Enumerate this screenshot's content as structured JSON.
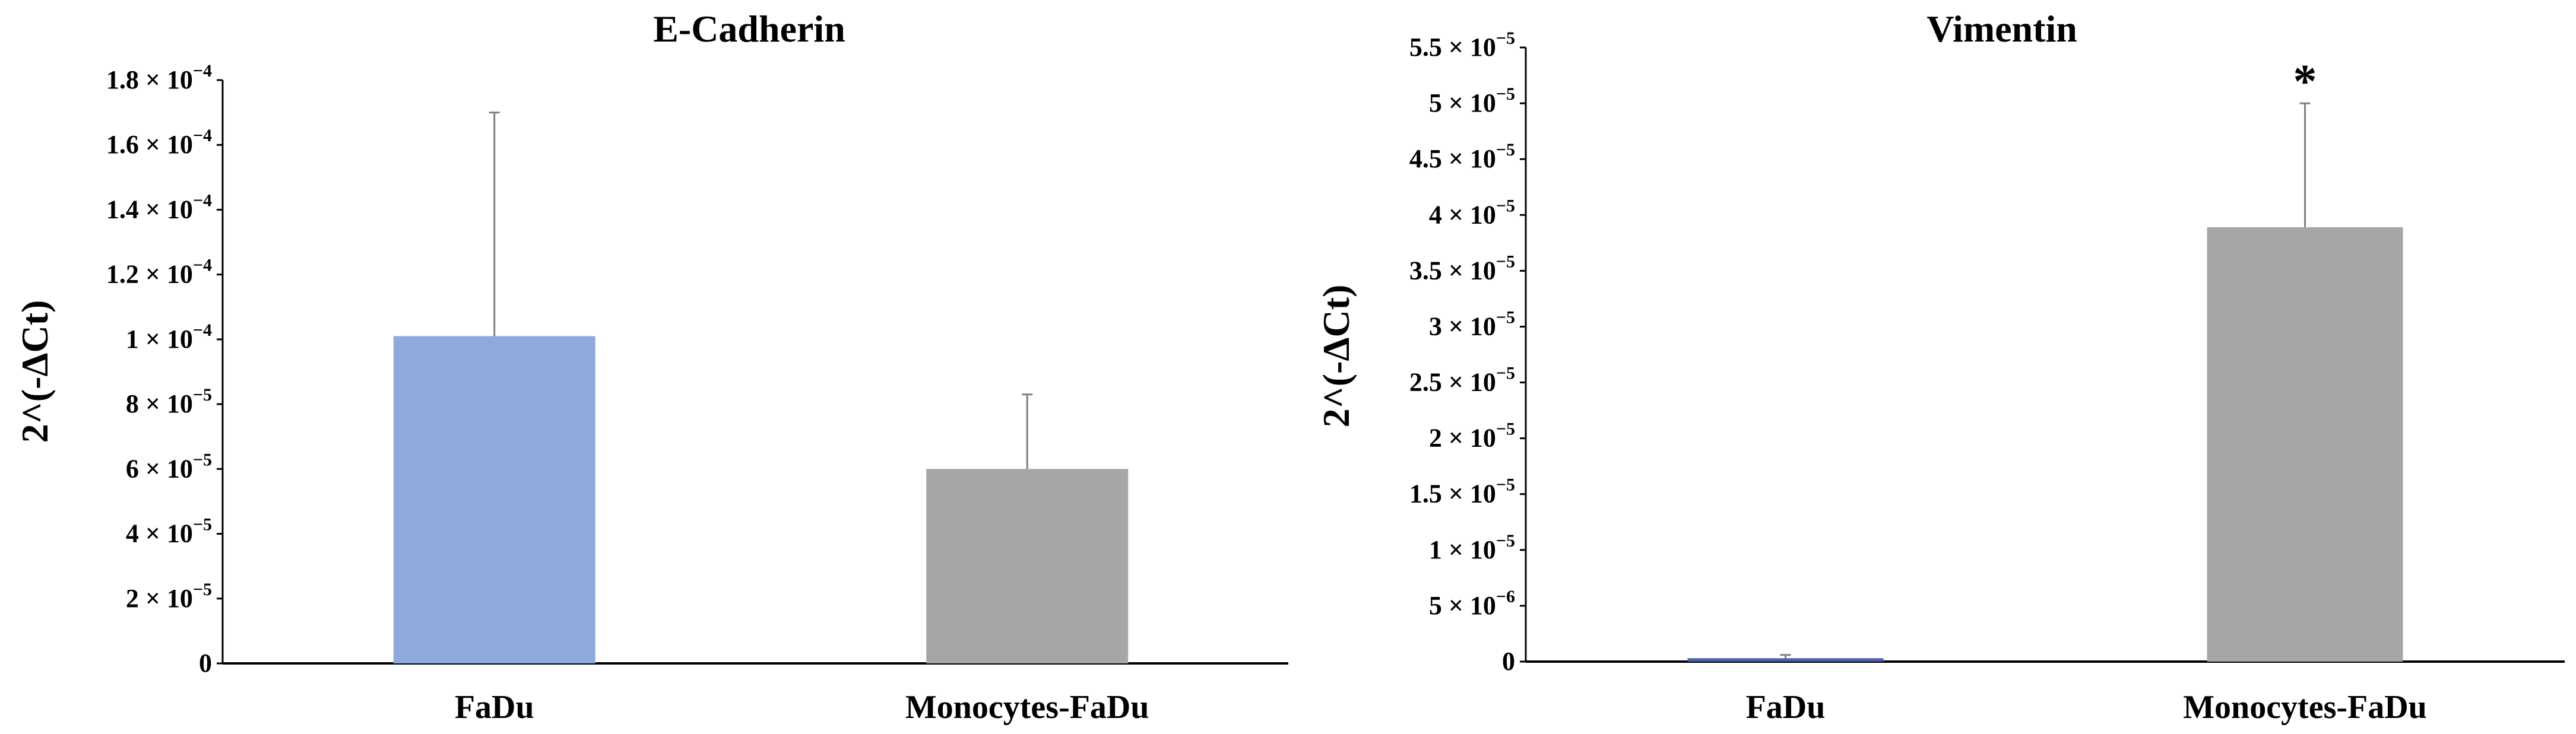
{
  "chart_data": [
    {
      "type": "bar",
      "title": "E-Cadherin",
      "ylabel": "2^(-ΔCt)",
      "xlabel": "",
      "categories": [
        "FaDu",
        "Monocytes-FaDu"
      ],
      "values": [
        0.000101,
        6e-05
      ],
      "errors": [
        6.9e-05,
        2.3e-05
      ],
      "colors": [
        "#8eaadc",
        "#a6a6a6"
      ],
      "ylim": [
        0,
        0.00018
      ],
      "annotations": [
        "",
        ""
      ],
      "yticks": [
        {
          "value": 0,
          "mantissa": "0",
          "exp": ""
        },
        {
          "value": 2e-05,
          "mantissa": "2 × 10",
          "exp": "−5"
        },
        {
          "value": 4e-05,
          "mantissa": "4 × 10",
          "exp": "−5"
        },
        {
          "value": 6e-05,
          "mantissa": "6 × 10",
          "exp": "−5"
        },
        {
          "value": 8e-05,
          "mantissa": "8 × 10",
          "exp": "−5"
        },
        {
          "value": 0.0001,
          "mantissa": "1 × 10",
          "exp": "−4"
        },
        {
          "value": 0.00012,
          "mantissa": "1.2 × 10",
          "exp": "−4"
        },
        {
          "value": 0.00014,
          "mantissa": "1.4 × 10",
          "exp": "−4"
        },
        {
          "value": 0.00016,
          "mantissa": "1.6 × 10",
          "exp": "−4"
        },
        {
          "value": 0.00018,
          "mantissa": "1.8 × 10",
          "exp": "−4"
        }
      ],
      "grid": false,
      "legend": "none"
    },
    {
      "type": "bar",
      "title": "Vimentin",
      "ylabel": "2^(-ΔCt)",
      "xlabel": "",
      "categories": [
        "FaDu",
        "Monocytes-FaDu"
      ],
      "values": [
        3e-07,
        3.89e-05
      ],
      "errors": [
        3e-07,
        1.11e-05
      ],
      "colors": [
        "#4a5fa8",
        "#a6a6a6"
      ],
      "ylim": [
        0,
        5.5e-05
      ],
      "annotations": [
        "",
        "*"
      ],
      "yticks": [
        {
          "value": 0,
          "mantissa": "0",
          "exp": ""
        },
        {
          "value": 5e-06,
          "mantissa": "5 × 10",
          "exp": "−6"
        },
        {
          "value": 1e-05,
          "mantissa": "1 × 10",
          "exp": "−5"
        },
        {
          "value": 1.5e-05,
          "mantissa": "1.5 × 10",
          "exp": "−5"
        },
        {
          "value": 2e-05,
          "mantissa": "2 × 10",
          "exp": "−5"
        },
        {
          "value": 2.5e-05,
          "mantissa": "2.5 × 10",
          "exp": "−5"
        },
        {
          "value": 3e-05,
          "mantissa": "3 × 10",
          "exp": "−5"
        },
        {
          "value": 3.5e-05,
          "mantissa": "3.5 × 10",
          "exp": "−5"
        },
        {
          "value": 4e-05,
          "mantissa": "4 × 10",
          "exp": "−5"
        },
        {
          "value": 4.5e-05,
          "mantissa": "4.5 × 10",
          "exp": "−5"
        },
        {
          "value": 5e-05,
          "mantissa": "5 × 10",
          "exp": "−5"
        },
        {
          "value": 5.5e-05,
          "mantissa": "5.5 × 10",
          "exp": "−5"
        }
      ],
      "grid": false,
      "legend": "none"
    }
  ]
}
